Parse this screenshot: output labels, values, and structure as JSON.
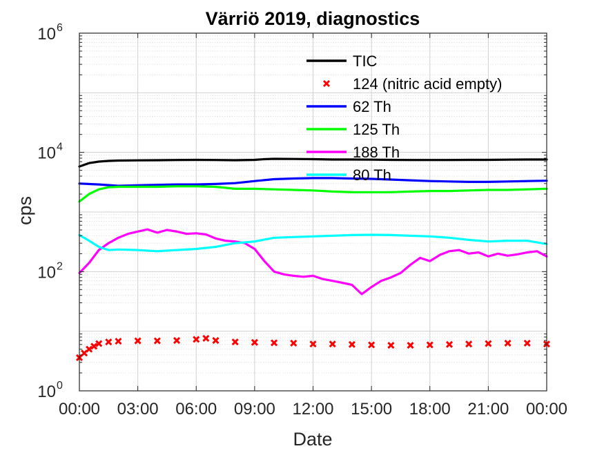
{
  "chart_data": {
    "type": "line",
    "title": "Värriö 2019, diagnostics",
    "xlabel": "Date",
    "ylabel": "cps",
    "yscale": "log",
    "ylim": [
      1,
      1000000
    ],
    "xlim": [
      0,
      24
    ],
    "x_ticks": [
      {
        "h": 0,
        "label": "00:00"
      },
      {
        "h": 3,
        "label": "03:00"
      },
      {
        "h": 6,
        "label": "06:00"
      },
      {
        "h": 9,
        "label": "09:00"
      },
      {
        "h": 12,
        "label": "12:00"
      },
      {
        "h": 15,
        "label": "15:00"
      },
      {
        "h": 18,
        "label": "18:00"
      },
      {
        "h": 21,
        "label": "21:00"
      },
      {
        "h": 24,
        "label": "00:00"
      }
    ],
    "y_ticks": [
      {
        "exp": 0,
        "base": "10",
        "sup": "0"
      },
      {
        "exp": 2,
        "base": "10",
        "sup": "2"
      },
      {
        "exp": 4,
        "base": "10",
        "sup": "4"
      },
      {
        "exp": 6,
        "base": "10",
        "sup": "6"
      }
    ],
    "grid": true,
    "legend_position": "top-center",
    "x_units": "hours of day (00:00 to 00:00 next day)",
    "series": [
      {
        "name": "TIC",
        "color": "#000000",
        "style": "line",
        "x": [
          0,
          0.5,
          1,
          1.5,
          2,
          3,
          4,
          5,
          6,
          7,
          8,
          9,
          9.5,
          10,
          11,
          12,
          13,
          14,
          15,
          16,
          17,
          18,
          19,
          20,
          21,
          22,
          23,
          24
        ],
        "y": [
          5800,
          6600,
          7000,
          7200,
          7300,
          7350,
          7400,
          7450,
          7500,
          7450,
          7400,
          7500,
          7700,
          7800,
          7750,
          7700,
          7600,
          7600,
          7550,
          7500,
          7450,
          7450,
          7450,
          7500,
          7500,
          7550,
          7600,
          7600
        ]
      },
      {
        "name": "124 (nitric acid empty)",
        "color": "#ff0000",
        "style": "marker-x",
        "x": [
          0,
          0.25,
          0.5,
          0.75,
          1,
          1.5,
          2,
          3,
          4,
          5,
          6,
          6.5,
          7,
          8,
          9,
          10,
          11,
          12,
          13,
          14,
          15,
          16,
          17,
          18,
          19,
          20,
          21,
          22,
          23,
          24
        ],
        "y": [
          3.6,
          4.3,
          5.0,
          5.6,
          6.2,
          6.6,
          6.8,
          6.9,
          6.9,
          7.0,
          7.3,
          7.6,
          7.0,
          6.6,
          6.5,
          6.4,
          6.3,
          6.1,
          6.1,
          6.0,
          5.9,
          5.8,
          5.8,
          5.9,
          6.0,
          6.1,
          6.2,
          6.3,
          6.3,
          6.1
        ]
      },
      {
        "name": "62 Th",
        "color": "#0000ff",
        "style": "line",
        "x": [
          0,
          1,
          2,
          3,
          4,
          5,
          6,
          7,
          8,
          9,
          10,
          11,
          12,
          13,
          14,
          15,
          16,
          17,
          18,
          19,
          20,
          21,
          22,
          23,
          24
        ],
        "y": [
          3000,
          2900,
          2750,
          2800,
          2850,
          2900,
          2900,
          2950,
          3050,
          3300,
          3550,
          3650,
          3700,
          3700,
          3650,
          3600,
          3500,
          3400,
          3300,
          3250,
          3200,
          3200,
          3250,
          3300,
          3350
        ]
      },
      {
        "name": "125 Th",
        "color": "#00ff00",
        "style": "line",
        "x": [
          0,
          0.5,
          1,
          1.5,
          2,
          3,
          4,
          5,
          6,
          7,
          8,
          9,
          10,
          11,
          12,
          13,
          14,
          15,
          16,
          17,
          18,
          19,
          20,
          21,
          22,
          23,
          24
        ],
        "y": [
          1500,
          2000,
          2400,
          2600,
          2650,
          2650,
          2650,
          2700,
          2700,
          2650,
          2450,
          2450,
          2400,
          2350,
          2300,
          2200,
          2150,
          2150,
          2150,
          2200,
          2250,
          2250,
          2300,
          2350,
          2350,
          2400,
          2450
        ]
      },
      {
        "name": "188 Th",
        "color": "#ff00ff",
        "style": "line",
        "x": [
          0,
          0.5,
          1,
          1.5,
          2,
          2.5,
          3,
          3.5,
          4,
          4.5,
          5,
          5.5,
          6,
          6.5,
          7,
          7.5,
          8,
          8.5,
          9,
          9.5,
          10,
          10.5,
          11,
          11.5,
          12,
          12.5,
          13,
          13.5,
          14,
          14.5,
          15,
          15.5,
          16,
          16.5,
          17,
          17.5,
          18,
          18.5,
          19,
          19.5,
          20,
          20.5,
          21,
          21.5,
          22,
          22.5,
          23,
          23.5,
          24
        ],
        "y": [
          95,
          140,
          230,
          300,
          370,
          430,
          470,
          510,
          450,
          500,
          470,
          430,
          440,
          420,
          360,
          330,
          320,
          300,
          240,
          150,
          100,
          90,
          85,
          82,
          85,
          75,
          70,
          65,
          60,
          42,
          55,
          70,
          80,
          95,
          130,
          170,
          150,
          190,
          220,
          230,
          200,
          210,
          180,
          200,
          185,
          195,
          210,
          220,
          180
        ]
      },
      {
        "name": "80 Th",
        "color": "#00ffff",
        "style": "line",
        "x": [
          0,
          0.5,
          1,
          1.5,
          2,
          3,
          4,
          5,
          6,
          7,
          8,
          9,
          10,
          11,
          12,
          13,
          14,
          15,
          16,
          17,
          18,
          19,
          20,
          21,
          22,
          23,
          24
        ],
        "y": [
          410,
          330,
          260,
          230,
          235,
          230,
          220,
          230,
          240,
          260,
          300,
          320,
          370,
          380,
          390,
          400,
          410,
          415,
          410,
          400,
          390,
          370,
          340,
          320,
          330,
          330,
          290
        ]
      }
    ]
  }
}
